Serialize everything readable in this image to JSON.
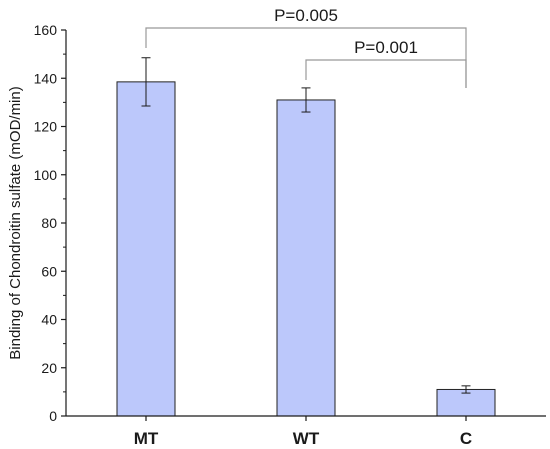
{
  "chart_data": {
    "type": "bar",
    "title": "",
    "xlabel": "",
    "ylabel": "Binding of Chondroitin sulfate (mOD/min)",
    "ylim": [
      0,
      160
    ],
    "yticks": [
      0,
      20,
      40,
      60,
      80,
      100,
      120,
      140,
      160
    ],
    "categories": [
      "MT",
      "WT",
      "C"
    ],
    "values": [
      138.5,
      131,
      11
    ],
    "errors": [
      10,
      5,
      1.5
    ],
    "bar_color": "#bcc8fb",
    "bar_edge_color": "#222222",
    "grid": false,
    "annotations": [
      {
        "from": "MT",
        "to": "C",
        "text": "P=0.005"
      },
      {
        "from": "WT",
        "to": "C",
        "text": "P=0.001"
      }
    ]
  }
}
